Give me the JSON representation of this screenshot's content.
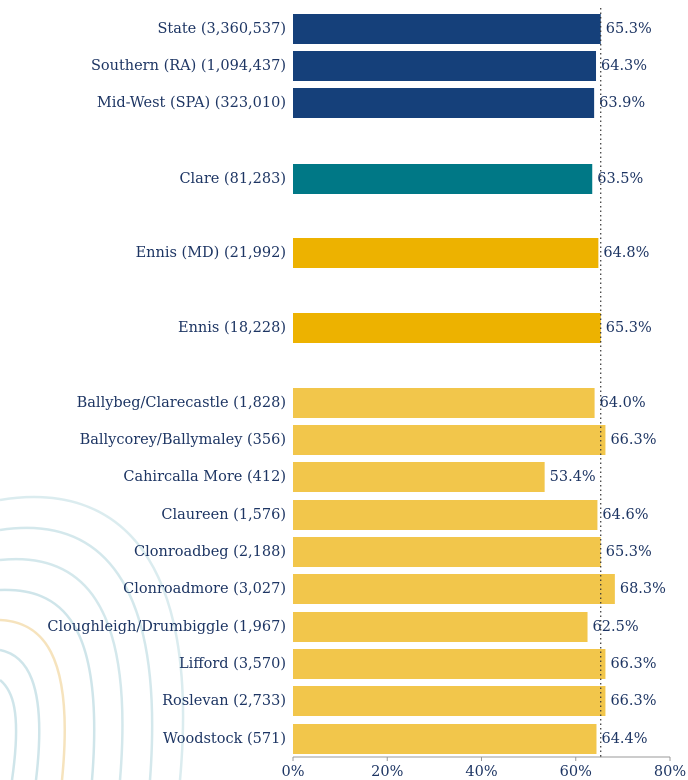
{
  "chart_data": {
    "type": "hbar",
    "categories": [
      "State (3,360,537)",
      "Southern (RA) (1,094,437)",
      "Mid-West (SPA) (323,010)",
      "Clare (81,283)",
      "Ennis (MD) (21,992)",
      "Ennis (18,228)",
      "Ballybeg/Clarecastle (1,828)",
      "Ballycorey/Ballymaley (356)",
      "Cahircalla More (412)",
      "Claureen (1,576)",
      "Clonroadbeg (2,188)",
      "Clonroadmore (3,027)",
      "Cloughleigh/Drumbiggle (1,967)",
      "Lifford (3,570)",
      "Roslevan (2,733)",
      "Woodstock (571)"
    ],
    "values": [
      65.3,
      64.3,
      63.9,
      63.5,
      64.8,
      65.3,
      64.0,
      66.3,
      53.4,
      64.6,
      65.3,
      68.3,
      62.5,
      66.3,
      66.3,
      64.4
    ],
    "value_labels": [
      "65.3%",
      "64.3%",
      "63.9%",
      "63.5%",
      "64.8%",
      "65.3%",
      "64.0%",
      "66.3%",
      "53.4%",
      "64.6%",
      "65.3%",
      "68.3%",
      "62.5%",
      "66.3%",
      "66.3%",
      "64.4%"
    ],
    "colors": [
      "#15407a",
      "#15407a",
      "#15407a",
      "#007886",
      "#edb200",
      "#edb200",
      "#f2c64b",
      "#f2c64b",
      "#f2c64b",
      "#f2c64b",
      "#f2c64b",
      "#f2c64b",
      "#f2c64b",
      "#f2c64b",
      "#f2c64b",
      "#f2c64b"
    ],
    "reference_line": 65.3,
    "xlim": [
      0,
      80
    ],
    "xticks": [
      {
        "value": 0,
        "label": "0%"
      },
      {
        "value": 20,
        "label": "20%"
      },
      {
        "value": 40,
        "label": "40%"
      },
      {
        "value": 60,
        "label": "60%"
      },
      {
        "value": 80,
        "label": "80%"
      }
    ]
  }
}
